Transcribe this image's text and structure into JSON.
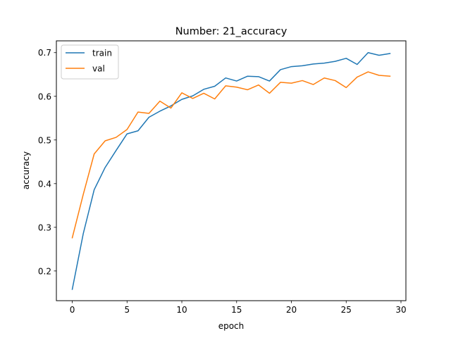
{
  "chart_data": {
    "type": "line",
    "title": "Number: 21_accuracy",
    "xlabel": "epoch",
    "ylabel": "accuracy",
    "xlim": [
      -1.45,
      30.45
    ],
    "ylim": [
      0.132,
      0.727
    ],
    "xticks": [
      0,
      5,
      10,
      15,
      20,
      25,
      30
    ],
    "yticks": [
      0.2,
      0.3,
      0.4,
      0.5,
      0.6,
      0.7
    ],
    "xtick_labels": [
      "0",
      "5",
      "10",
      "15",
      "20",
      "25",
      "30"
    ],
    "ytick_labels": [
      "0.2",
      "0.3",
      "0.4",
      "0.5",
      "0.6",
      "0.7"
    ],
    "grid": false,
    "legend_position": "top-left",
    "x": [
      0,
      1,
      2,
      3,
      4,
      5,
      6,
      7,
      8,
      9,
      10,
      11,
      12,
      13,
      14,
      15,
      16,
      17,
      18,
      19,
      20,
      21,
      22,
      23,
      24,
      25,
      26,
      27,
      28,
      29
    ],
    "series": [
      {
        "name": "train",
        "color": "#1f77b4",
        "values": [
          0.158,
          0.285,
          0.386,
          0.437,
          0.476,
          0.514,
          0.521,
          0.552,
          0.566,
          0.578,
          0.593,
          0.601,
          0.616,
          0.623,
          0.642,
          0.635,
          0.646,
          0.645,
          0.635,
          0.661,
          0.668,
          0.67,
          0.674,
          0.676,
          0.68,
          0.687,
          0.673,
          0.7,
          0.694,
          0.698
        ]
      },
      {
        "name": "val",
        "color": "#ff7f0e",
        "values": [
          0.276,
          0.375,
          0.468,
          0.498,
          0.506,
          0.524,
          0.564,
          0.561,
          0.589,
          0.573,
          0.608,
          0.595,
          0.607,
          0.594,
          0.624,
          0.621,
          0.615,
          0.626,
          0.607,
          0.632,
          0.63,
          0.636,
          0.627,
          0.642,
          0.636,
          0.62,
          0.644,
          0.656,
          0.648,
          0.646
        ]
      }
    ]
  }
}
